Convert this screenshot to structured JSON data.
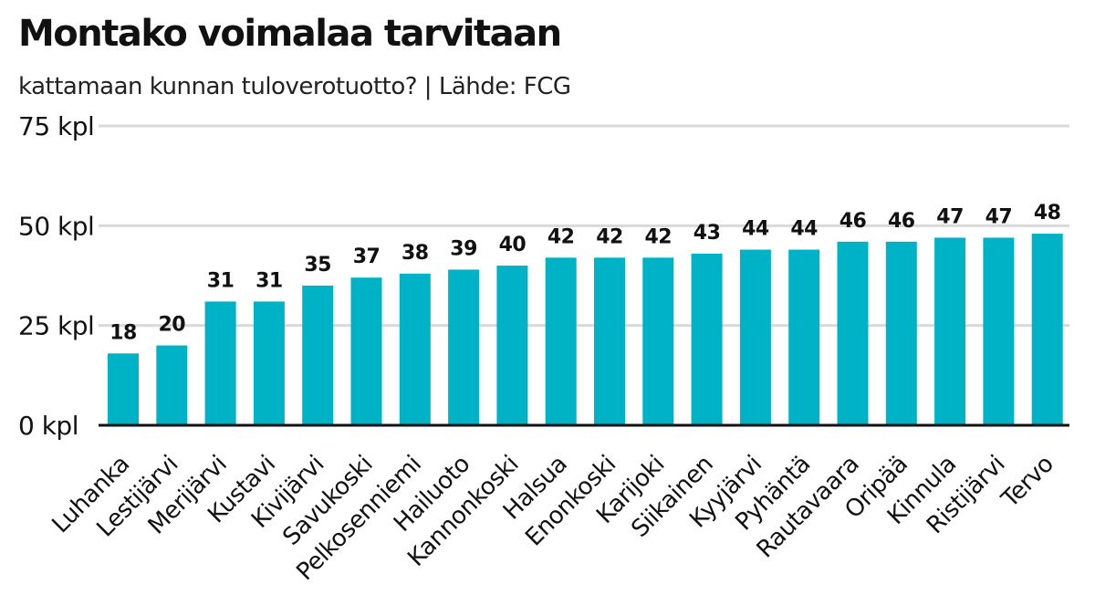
{
  "chart_data": {
    "type": "bar",
    "title": "Montako voimalaa tarvitaan",
    "subtitle": "kattamaan kunnan tuloverotuotto? | Lähde: FCG",
    "categories": [
      "Luhanka",
      "Lestijärvi",
      "Merijärvi",
      "Kustavi",
      "Kivijärvi",
      "Savukoski",
      "Pelkosenniemi",
      "Hailuoto",
      "Kannonkoski",
      "Halsua",
      "Enonkoski",
      "Karijoki",
      "Siikainen",
      "Kyyjärvi",
      "Pyhäntä",
      "Rautavaara",
      "Oripää",
      "Kinnula",
      "Ristijärvi",
      "Tervo"
    ],
    "values": [
      18,
      20,
      31,
      31,
      35,
      37,
      38,
      39,
      40,
      42,
      42,
      42,
      43,
      44,
      44,
      46,
      46,
      47,
      47,
      48
    ],
    "ylim": [
      0,
      75
    ],
    "yticks": [
      0,
      25,
      50,
      75
    ],
    "ytick_labels": [
      "0 kpl",
      "25 kpl",
      "50 kpl",
      "75 kpl"
    ],
    "grid": true,
    "bar_color": "#00b2c6",
    "grid_color": "#d9d9d9",
    "baseline_color": "#111111"
  }
}
